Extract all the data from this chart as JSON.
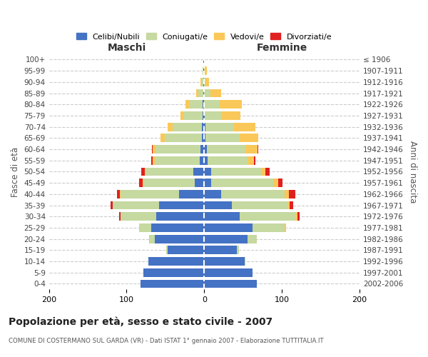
{
  "age_groups": [
    "100+",
    "95-99",
    "90-94",
    "85-89",
    "80-84",
    "75-79",
    "70-74",
    "65-69",
    "60-64",
    "55-59",
    "50-54",
    "45-49",
    "40-44",
    "35-39",
    "30-34",
    "25-29",
    "20-24",
    "15-19",
    "10-14",
    "5-9",
    "0-4"
  ],
  "birth_years": [
    "≤ 1906",
    "1907-1911",
    "1912-1916",
    "1917-1921",
    "1922-1926",
    "1927-1931",
    "1932-1936",
    "1937-1941",
    "1942-1946",
    "1947-1951",
    "1952-1956",
    "1957-1961",
    "1962-1966",
    "1967-1971",
    "1972-1976",
    "1977-1981",
    "1982-1986",
    "1987-1991",
    "1992-1996",
    "1997-2001",
    "2002-2006"
  ],
  "male": {
    "celibi": [
      1,
      1,
      1,
      1,
      2,
      2,
      3,
      3,
      5,
      6,
      14,
      12,
      32,
      58,
      62,
      68,
      64,
      47,
      72,
      78,
      82
    ],
    "coniugati": [
      0,
      1,
      3,
      7,
      18,
      25,
      38,
      48,
      58,
      58,
      62,
      66,
      76,
      60,
      46,
      16,
      6,
      2,
      0,
      0,
      0
    ],
    "vedovi": [
      0,
      0,
      1,
      2,
      4,
      4,
      6,
      5,
      3,
      2,
      1,
      1,
      1,
      0,
      0,
      0,
      1,
      0,
      0,
      0,
      0
    ],
    "divorziati": [
      0,
      0,
      0,
      0,
      0,
      0,
      0,
      0,
      1,
      2,
      4,
      5,
      3,
      3,
      2,
      0,
      0,
      0,
      0,
      0,
      0
    ]
  },
  "female": {
    "nubili": [
      0,
      0,
      0,
      0,
      0,
      1,
      2,
      2,
      3,
      4,
      9,
      9,
      22,
      36,
      46,
      62,
      56,
      42,
      52,
      62,
      68
    ],
    "coniugate": [
      0,
      1,
      2,
      8,
      20,
      22,
      36,
      44,
      50,
      52,
      64,
      80,
      82,
      72,
      72,
      42,
      12,
      3,
      1,
      0,
      0
    ],
    "vedove": [
      0,
      2,
      4,
      14,
      28,
      24,
      28,
      24,
      16,
      8,
      6,
      6,
      5,
      2,
      2,
      1,
      0,
      0,
      0,
      0,
      0
    ],
    "divorziate": [
      0,
      0,
      0,
      0,
      0,
      0,
      0,
      0,
      1,
      2,
      5,
      6,
      8,
      5,
      3,
      0,
      0,
      0,
      0,
      0,
      0
    ]
  },
  "colors": {
    "celibi": "#4472C4",
    "coniugati": "#C5D9A0",
    "vedovi": "#FAC858",
    "divorziati": "#E02020"
  },
  "title": "Popolazione per età, sesso e stato civile - 2007",
  "subtitle": "COMUNE DI COSTERMANO SUL GARDA (VR) - Dati ISTAT 1° gennaio 2007 - Elaborazione TUTTITALIA.IT",
  "xlabel_left": "Maschi",
  "xlabel_right": "Femmine",
  "ylabel_left": "Fasce di età",
  "ylabel_right": "Anni di nascita",
  "xlim": 200,
  "background_color": "#ffffff",
  "grid_color": "#cccccc"
}
